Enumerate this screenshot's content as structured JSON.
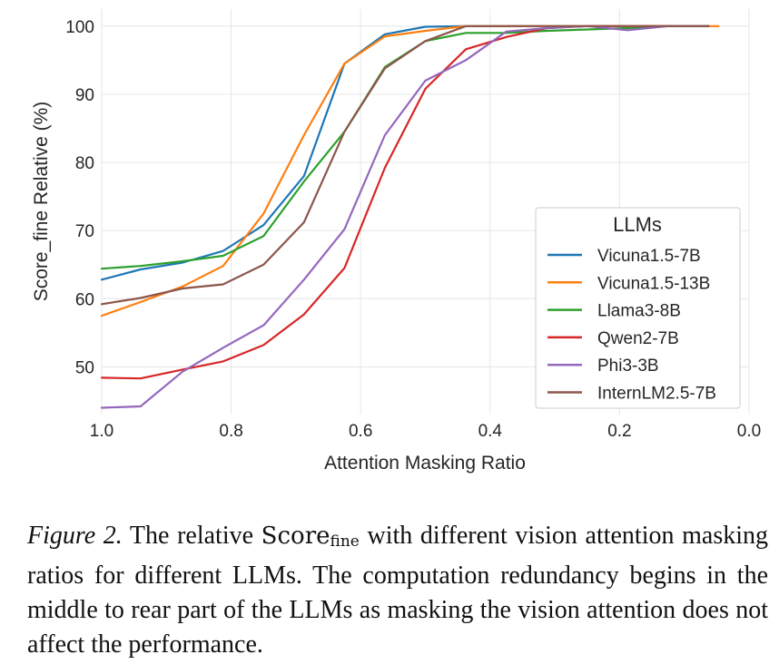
{
  "chart_data": {
    "type": "line",
    "title": "",
    "xlabel": "Attention Masking Ratio",
    "ylabel": "Score_fine Relative (%)",
    "xlim": [
      1.0,
      0.0
    ],
    "ylim": [
      43,
      102.5
    ],
    "x_ticks": [
      "1.0",
      "0.8",
      "0.6",
      "0.4",
      "0.2",
      "0.0"
    ],
    "y_ticks": [
      "50",
      "60",
      "70",
      "80",
      "90",
      "100"
    ],
    "grid": true,
    "legend_title": "LLMs",
    "legend_position": "center-right",
    "series": [
      {
        "name": "Vicuna1.5-7B",
        "color": "#1f77b4",
        "x": [
          1.0,
          0.94,
          0.875,
          0.8125,
          0.75,
          0.6875,
          0.625,
          0.5625,
          0.5,
          0.4375,
          0.375,
          0.3125,
          0.25,
          0.1875,
          0.125,
          0.0625
        ],
        "y": [
          62.8,
          64.3,
          65.3,
          67.0,
          70.8,
          78.0,
          94.5,
          98.8,
          99.9,
          100.0,
          100.0,
          100.0,
          100.0,
          100.0,
          100.0,
          100.0
        ]
      },
      {
        "name": "Vicuna1.5-13B",
        "color": "#ff7f0e",
        "x": [
          1.0,
          0.94,
          0.875,
          0.8125,
          0.75,
          0.6875,
          0.625,
          0.5625,
          0.5,
          0.4375,
          0.375,
          0.3125,
          0.25,
          0.1875,
          0.125,
          0.0625,
          0.047
        ],
        "y": [
          57.5,
          59.5,
          61.8,
          64.8,
          72.5,
          84.0,
          94.5,
          98.5,
          99.3,
          100.0,
          100.0,
          100.0,
          100.0,
          100.0,
          100.0,
          100.0,
          100.0
        ]
      },
      {
        "name": "Llama3-8B",
        "color": "#2ca02c",
        "x": [
          1.0,
          0.94,
          0.875,
          0.8125,
          0.75,
          0.6875,
          0.625,
          0.5625,
          0.5,
          0.4375,
          0.375,
          0.3125,
          0.25,
          0.1875,
          0.125,
          0.0625
        ],
        "y": [
          64.4,
          64.8,
          65.5,
          66.3,
          69.2,
          77.2,
          84.5,
          94.0,
          97.8,
          99.0,
          99.0,
          99.3,
          99.5,
          99.7,
          100.0,
          100.0
        ]
      },
      {
        "name": "Qwen2-7B",
        "color": "#d62728",
        "x": [
          1.0,
          0.94,
          0.875,
          0.8125,
          0.75,
          0.6875,
          0.625,
          0.5625,
          0.5,
          0.4375,
          0.375,
          0.3125,
          0.25,
          0.1875,
          0.125,
          0.0625
        ],
        "y": [
          48.4,
          48.3,
          49.6,
          50.8,
          53.2,
          57.7,
          64.5,
          79.2,
          90.8,
          96.6,
          98.4,
          99.7,
          100.0,
          100.0,
          100.0,
          100.0
        ]
      },
      {
        "name": "Phi3-3B",
        "color": "#9467bd",
        "x": [
          1.0,
          0.94,
          0.875,
          0.8125,
          0.75,
          0.6875,
          0.625,
          0.5625,
          0.5,
          0.4375,
          0.375,
          0.3125,
          0.25,
          0.1875,
          0.125,
          0.0625
        ],
        "y": [
          44.0,
          44.2,
          49.3,
          52.8,
          56.1,
          62.8,
          70.2,
          84.0,
          92.0,
          95.0,
          99.2,
          99.7,
          100.0,
          99.4,
          100.0,
          100.0
        ]
      },
      {
        "name": "InternLM2.5-7B",
        "color": "#8c564b",
        "x": [
          1.0,
          0.94,
          0.875,
          0.8125,
          0.75,
          0.6875,
          0.625,
          0.5625,
          0.5,
          0.4375,
          0.375,
          0.3125,
          0.25,
          0.1875,
          0.125,
          0.0625
        ],
        "y": [
          59.2,
          60.1,
          61.5,
          62.1,
          65.0,
          71.2,
          84.5,
          93.8,
          97.8,
          100.0,
          100.0,
          100.0,
          100.0,
          100.0,
          100.0,
          100.0
        ]
      }
    ]
  },
  "caption": {
    "figure_label": "Figure 2.",
    "text_before": "The relative",
    "score_word": "Score",
    "score_sub": "fine",
    "text_after": "with different vision attention masking ratios for different LLMs. The computation redundancy begins in the middle to rear part of the LLMs as masking the vision attention does not affect the performance."
  }
}
